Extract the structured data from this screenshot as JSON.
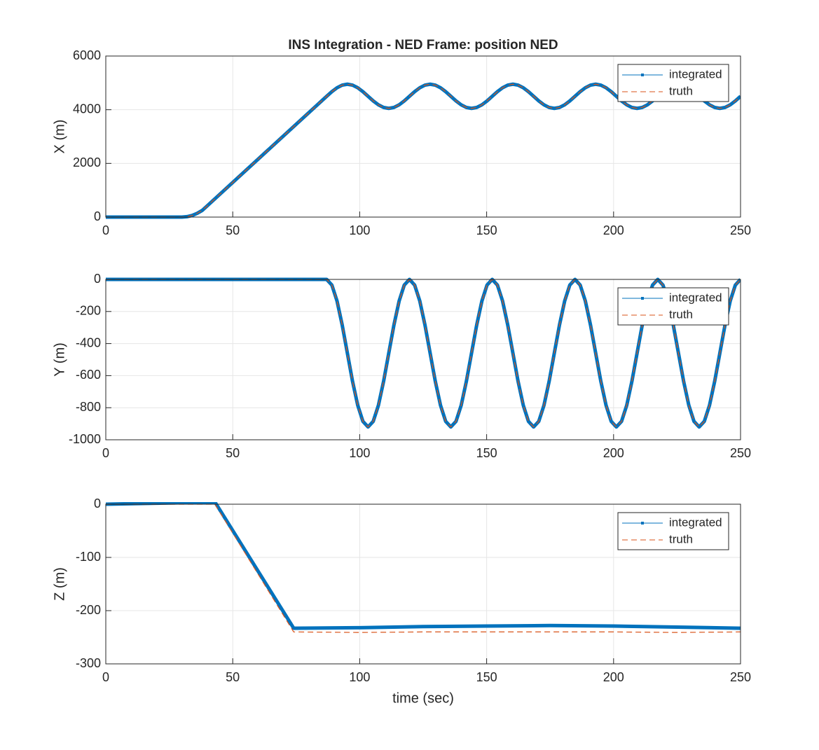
{
  "chart_data": [
    {
      "type": "line",
      "title": "INS Integration - NED Frame: position NED",
      "ylabel": "X (m)",
      "x": [
        0,
        30,
        32,
        34,
        36,
        38,
        87,
        89.04,
        91.08,
        93.11,
        95.15,
        97.19,
        99.23,
        101.26,
        103.3,
        105.34,
        107.38,
        109.41,
        111.45,
        113.49,
        115.53,
        117.56,
        119.6,
        121.64,
        123.68,
        125.71,
        127.75,
        129.79,
        131.83,
        133.86,
        135.9,
        137.94,
        139.98,
        142.01,
        144.05,
        146.09,
        148.13,
        150.16,
        152.2,
        154.24,
        156.28,
        158.31,
        160.35,
        162.39,
        164.43,
        166.46,
        168.5,
        170.54,
        172.58,
        174.61,
        176.65,
        178.69,
        180.73,
        182.76,
        184.8,
        186.84,
        188.88,
        190.91,
        192.95,
        194.99,
        197.03,
        199.06,
        201.1,
        203.14,
        205.18,
        207.21,
        209.25,
        211.29,
        213.33,
        215.36,
        217.4,
        219.44,
        221.48,
        223.51,
        225.55,
        227.59,
        229.63,
        231.66,
        233.7,
        235.74,
        237.78,
        239.81,
        241.85,
        243.89,
        245.93,
        247.96,
        250
      ],
      "series": [
        {
          "name": "integrated",
          "color": "#0072bd",
          "values": [
            0,
            0,
            15,
            60,
            140,
            250,
            4500,
            4672,
            4818,
            4916,
            4950,
            4916,
            4818,
            4672,
            4500,
            4328,
            4182,
            4084,
            4050,
            4084,
            4182,
            4328,
            4500,
            4672,
            4818,
            4916,
            4950,
            4916,
            4818,
            4672,
            4500,
            4328,
            4182,
            4084,
            4050,
            4084,
            4182,
            4328,
            4500,
            4672,
            4818,
            4916,
            4950,
            4916,
            4818,
            4672,
            4500,
            4328,
            4182,
            4084,
            4050,
            4084,
            4182,
            4328,
            4500,
            4672,
            4818,
            4916,
            4950,
            4916,
            4818,
            4672,
            4500,
            4328,
            4182,
            4084,
            4050,
            4084,
            4182,
            4328,
            4500,
            4672,
            4818,
            4916,
            4950,
            4916,
            4818,
            4672,
            4500,
            4328,
            4182,
            4084,
            4050,
            4084,
            4182,
            4328,
            4500
          ]
        },
        {
          "name": "truth",
          "color": "#d95319",
          "values": [
            0,
            0,
            15,
            60,
            140,
            250,
            4500,
            4672,
            4818,
            4916,
            4950,
            4916,
            4818,
            4672,
            4500,
            4328,
            4182,
            4084,
            4050,
            4084,
            4182,
            4328,
            4500,
            4672,
            4818,
            4916,
            4950,
            4916,
            4818,
            4672,
            4500,
            4328,
            4182,
            4084,
            4050,
            4084,
            4182,
            4328,
            4500,
            4672,
            4818,
            4916,
            4950,
            4916,
            4818,
            4672,
            4500,
            4328,
            4182,
            4084,
            4050,
            4084,
            4182,
            4328,
            4500,
            4672,
            4818,
            4916,
            4950,
            4916,
            4818,
            4672,
            4500,
            4328,
            4182,
            4084,
            4050,
            4084,
            4182,
            4328,
            4500,
            4672,
            4818,
            4916,
            4950,
            4916,
            4818,
            4672,
            4500,
            4328,
            4182,
            4084,
            4050,
            4084,
            4182,
            4328,
            4500
          ]
        }
      ],
      "xlim": [
        0,
        250
      ],
      "xticks": [
        0,
        50,
        100,
        150,
        200,
        250
      ],
      "ylim": [
        0,
        6000
      ],
      "yticks": [
        0,
        2000,
        4000,
        6000
      ],
      "grid": true,
      "legend": "northeast"
    },
    {
      "type": "line",
      "ylabel": "Y (m)",
      "x": [
        0,
        87,
        89.04,
        91.08,
        93.11,
        95.15,
        97.19,
        99.23,
        101.26,
        103.3,
        105.34,
        107.38,
        109.41,
        111.45,
        113.49,
        115.53,
        117.56,
        119.6,
        121.64,
        123.68,
        125.71,
        127.75,
        129.79,
        131.83,
        133.86,
        135.9,
        137.94,
        139.98,
        142.01,
        144.05,
        146.09,
        148.13,
        150.16,
        152.2,
        154.24,
        156.28,
        158.31,
        160.35,
        162.39,
        164.43,
        166.46,
        168.5,
        170.54,
        172.58,
        174.61,
        176.65,
        178.69,
        180.73,
        182.76,
        184.8,
        186.84,
        188.88,
        190.91,
        192.95,
        194.99,
        197.03,
        199.06,
        201.1,
        203.14,
        205.18,
        207.21,
        209.25,
        211.29,
        213.33,
        215.36,
        217.4,
        219.44,
        221.48,
        223.51,
        225.55,
        227.59,
        229.63,
        231.66,
        233.7,
        235.74,
        237.78,
        239.81,
        241.85,
        243.89,
        245.93,
        247.96,
        250
      ],
      "series": [
        {
          "name": "integrated",
          "color": "#0072bd",
          "values": [
            0,
            0,
            -35,
            -135,
            -284,
            -460,
            -636,
            -785,
            -885,
            -920,
            -885,
            -785,
            -636,
            -460,
            -284,
            -135,
            -35,
            0,
            -35,
            -135,
            -284,
            -460,
            -636,
            -785,
            -885,
            -920,
            -885,
            -785,
            -636,
            -460,
            -284,
            -135,
            -35,
            0,
            -35,
            -135,
            -284,
            -460,
            -636,
            -785,
            -885,
            -920,
            -885,
            -785,
            -636,
            -460,
            -284,
            -135,
            -35,
            0,
            -35,
            -135,
            -284,
            -460,
            -636,
            -785,
            -885,
            -920,
            -885,
            -785,
            -636,
            -460,
            -284,
            -135,
            -35,
            0,
            -35,
            -135,
            -284,
            -460,
            -636,
            -785,
            -885,
            -920,
            -885,
            -785,
            -636,
            -460,
            -284,
            -135,
            -35,
            0
          ]
        },
        {
          "name": "truth",
          "color": "#d95319",
          "values": [
            0,
            0,
            -35,
            -135,
            -284,
            -460,
            -636,
            -785,
            -885,
            -920,
            -885,
            -785,
            -636,
            -460,
            -284,
            -135,
            -35,
            0,
            -35,
            -135,
            -284,
            -460,
            -636,
            -785,
            -885,
            -920,
            -885,
            -785,
            -636,
            -460,
            -284,
            -135,
            -35,
            0,
            -35,
            -135,
            -284,
            -460,
            -636,
            -785,
            -885,
            -920,
            -885,
            -785,
            -636,
            -460,
            -284,
            -135,
            -35,
            0,
            -35,
            -135,
            -284,
            -460,
            -636,
            -785,
            -885,
            -920,
            -885,
            -785,
            -636,
            -460,
            -284,
            -135,
            -35,
            0,
            -35,
            -135,
            -284,
            -460,
            -636,
            -785,
            -885,
            -920,
            -885,
            -785,
            -636,
            -460,
            -284,
            -135,
            -35,
            0
          ]
        }
      ],
      "xlim": [
        0,
        250
      ],
      "xticks": [
        0,
        50,
        100,
        150,
        200,
        250
      ],
      "ylim": [
        -1000,
        0
      ],
      "yticks": [
        -1000,
        -800,
        -600,
        -400,
        -200,
        0
      ],
      "grid": true,
      "legend": "northeast"
    },
    {
      "type": "line",
      "ylabel": "Z (m)",
      "xlabel": "time (sec)",
      "x": [
        0,
        43,
        74,
        100,
        125,
        150,
        175,
        200,
        225,
        250
      ],
      "series": [
        {
          "name": "integrated",
          "color": "#0072bd",
          "values": [
            0,
            4,
            -233,
            -232,
            -230,
            -229,
            -228,
            -229,
            -231,
            -233
          ]
        },
        {
          "name": "truth",
          "color": "#d95319",
          "values": [
            0,
            0,
            -240,
            -241,
            -240,
            -240,
            -240,
            -240,
            -241,
            -240
          ]
        }
      ],
      "xlim": [
        0,
        250
      ],
      "xticks": [
        0,
        50,
        100,
        150,
        200,
        250
      ],
      "ylim": [
        -300,
        0
      ],
      "yticks": [
        -300,
        -200,
        -100,
        0
      ],
      "grid": true,
      "legend": "northeast"
    }
  ]
}
